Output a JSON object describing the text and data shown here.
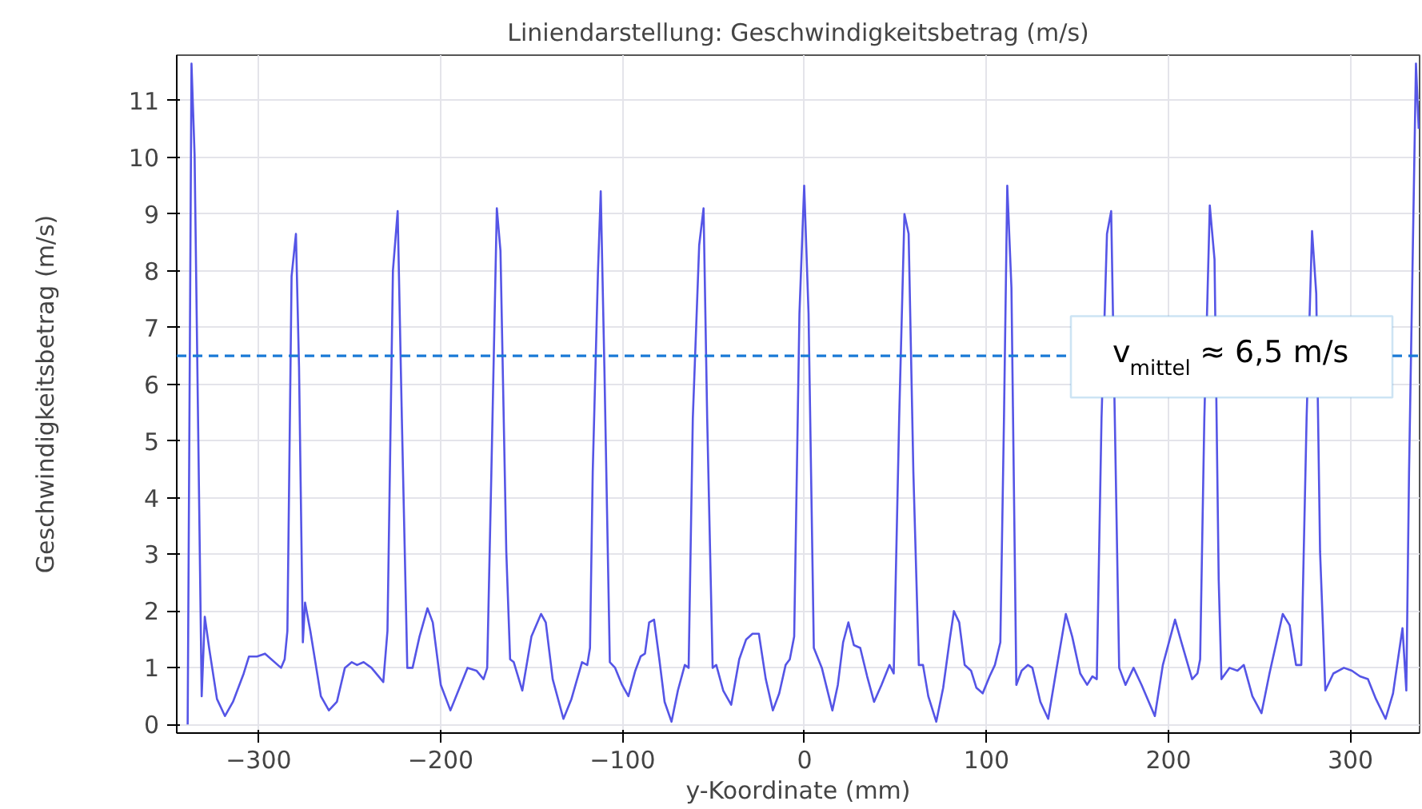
{
  "chart_data": {
    "type": "line",
    "title": "Liniendarstellung: Geschwindigkeitsbetrag (m/s)",
    "xlabel": "y-Koordinate (mm)",
    "ylabel": "Geschwindigkeitsbetrag (m/s)",
    "x": [
      -339.0,
      -336.9,
      -335.2,
      -331.3,
      -329.6,
      -327.2,
      -322.9,
      -318.5,
      -314.1,
      -308.2,
      -305.3,
      -300.9,
      -296.5,
      -287.7,
      -285.7,
      -284.2,
      -281.9,
      -279.5,
      -277.8,
      -275.7,
      -274.5,
      -271.6,
      -265.8,
      -261.4,
      -257.0,
      -252.6,
      -248.8,
      -245.9,
      -242.3,
      -238.0,
      -231.5,
      -229.2,
      -226.2,
      -223.6,
      -221.3,
      -218.3,
      -215.4,
      -211.6,
      -207.2,
      -204.3,
      -199.9,
      -194.6,
      -190.2,
      -185.2,
      -180.3,
      -176.4,
      -174.4,
      -172.1,
      -169.1,
      -167.1,
      -163.9,
      -161.8,
      -159.8,
      -155.1,
      -150.1,
      -144.8,
      -142.2,
      -138.4,
      -132.5,
      -128.1,
      -122.3,
      -119.4,
      -117.9,
      -116.4,
      -113.5,
      -112.0,
      -110.0,
      -107.0,
      -104.1,
      -100.3,
      -96.8,
      -93.0,
      -90.1,
      -87.7,
      -85.4,
      -82.7,
      -79.8,
      -76.9,
      -73.1,
      -69.6,
      -65.8,
      -63.7,
      -61.4,
      -57.9,
      -55.5,
      -53.5,
      -50.5,
      -48.5,
      -44.7,
      -40.3,
      -35.9,
      -32.1,
      -28.6,
      -25.1,
      -21.3,
      -17.4,
      -13.9,
      -10.4,
      -8.1,
      -5.7,
      -2.8,
      -0.2,
      2.2,
      5.1,
      9.5,
      11.8,
      15.3,
      18.3,
      21.2,
      24.1,
      27.1,
      30.6,
      34.4,
      38.2,
      42.3,
      46.7,
      49.0,
      52.0,
      54.9,
      57.2,
      59.8,
      62.8,
      65.1,
      68.0,
      72.4,
      76.2,
      79.8,
      82.1,
      85.0,
      88.0,
      91.5,
      94.4,
      97.9,
      101.7,
      104.6,
      107.6,
      109.6,
      111.4,
      113.7,
      116.4,
      119.3,
      122.8,
      125.2,
      129.6,
      133.9,
      138.3,
      143.6,
      147.1,
      151.5,
      155.3,
      158.2,
      160.6,
      163.2,
      166.2,
      168.5,
      170.5,
      172.9,
      176.4,
      180.8,
      185.2,
      192.5,
      196.9,
      203.6,
      207.1,
      213.0,
      215.9,
      217.4,
      219.7,
      222.7,
      225.3,
      227.6,
      229.1,
      233.5,
      237.9,
      241.4,
      246.1,
      251.1,
      255.5,
      262.8,
      266.6,
      270.1,
      273.0,
      275.9,
      278.9,
      281.2,
      283.3,
      286.2,
      290.6,
      296.4,
      300.8,
      305.2,
      309.6,
      314.0,
      319.3,
      323.4,
      328.6,
      330.7,
      332.2,
      336.0,
      337.5
    ],
    "series": [
      {
        "color": "#5555e6",
        "values": [
          0,
          11.65,
          10.05,
          0.5,
          1.9,
          1.35,
          0.45,
          0.15,
          0.4,
          0.9,
          1.2,
          1.2,
          1.25,
          1.0,
          1.15,
          1.65,
          7.9,
          8.65,
          6.3,
          1.45,
          2.15,
          1.65,
          0.5,
          0.25,
          0.4,
          1.0,
          1.1,
          1.05,
          1.1,
          1.0,
          0.75,
          1.65,
          8.0,
          9.05,
          5.4,
          1.0,
          1.0,
          1.55,
          2.05,
          1.8,
          0.7,
          0.25,
          0.6,
          1.0,
          0.95,
          0.8,
          1.0,
          4.45,
          9.1,
          8.35,
          3.05,
          1.15,
          1.1,
          0.6,
          1.55,
          1.95,
          1.8,
          0.8,
          0.1,
          0.45,
          1.1,
          1.05,
          1.35,
          4.45,
          8.0,
          9.4,
          6.3,
          1.1,
          1.0,
          0.7,
          0.5,
          0.95,
          1.2,
          1.25,
          1.8,
          1.85,
          1.15,
          0.4,
          0.05,
          0.6,
          1.05,
          1.0,
          5.4,
          8.45,
          9.1,
          5.4,
          1.0,
          1.05,
          0.6,
          0.35,
          1.15,
          1.5,
          1.6,
          1.6,
          0.8,
          0.25,
          0.55,
          1.05,
          1.15,
          1.55,
          7.25,
          9.5,
          7.25,
          1.35,
          1.0,
          0.7,
          0.25,
          0.7,
          1.45,
          1.8,
          1.4,
          1.35,
          0.85,
          0.4,
          0.7,
          1.05,
          0.9,
          5.4,
          9.0,
          8.65,
          4.45,
          1.05,
          1.05,
          0.5,
          0.05,
          0.65,
          1.5,
          2.0,
          1.8,
          1.05,
          0.95,
          0.65,
          0.55,
          0.85,
          1.05,
          1.45,
          5.4,
          9.5,
          7.7,
          0.7,
          0.95,
          1.05,
          1.0,
          0.4,
          0.1,
          0.95,
          1.95,
          1.55,
          0.9,
          0.7,
          0.85,
          0.8,
          5.4,
          8.65,
          9.05,
          5.4,
          1.0,
          0.7,
          1.0,
          0.7,
          0.15,
          1.05,
          1.85,
          1.45,
          0.8,
          0.9,
          1.15,
          5.4,
          9.15,
          8.2,
          2.55,
          0.8,
          1.0,
          0.95,
          1.05,
          0.5,
          0.2,
          0.9,
          1.95,
          1.75,
          1.05,
          1.05,
          5.4,
          8.7,
          7.6,
          3.05,
          0.6,
          0.9,
          1.0,
          0.95,
          0.85,
          0.8,
          0.45,
          0.1,
          0.55,
          1.7,
          0.6,
          4.45,
          11.65,
          10.5
        ]
      }
    ],
    "xlim": [
      -345,
      338
    ],
    "ylim": [
      -0.15,
      11.8
    ],
    "xticks": [
      -300,
      -200,
      -100,
      0,
      100,
      200,
      300
    ],
    "yticks": [
      0,
      1,
      2,
      3,
      4,
      5,
      6,
      7,
      8,
      9,
      10,
      11
    ],
    "grid": true,
    "line_style": "solid",
    "marker": "none",
    "ref_lines": [
      {
        "axis": "y",
        "value": 6.5,
        "label": "v$_{mittel}$ ≈ 6,5 m/s",
        "color": "#1a7ad6",
        "line_style": "dashed"
      }
    ]
  }
}
